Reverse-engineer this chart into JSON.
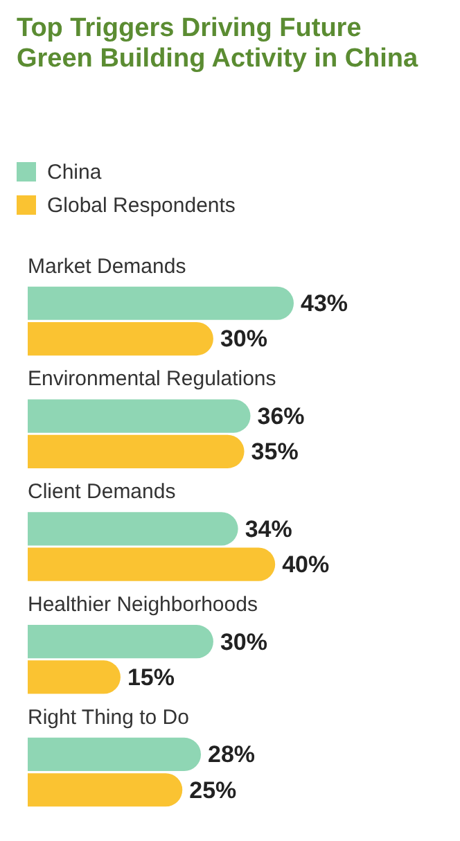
{
  "chart_data": {
    "type": "bar",
    "orientation": "horizontal",
    "title": "Top Triggers Driving Future Green Building Activity in China",
    "categories": [
      "Market Demands",
      "Environmental Regulations",
      "Client Demands",
      "Healthier Neighborhoods",
      "Right Thing to Do"
    ],
    "series": [
      {
        "name": "China",
        "color": "#8fd6b4",
        "values": [
          43,
          36,
          34,
          30,
          28
        ],
        "value_labels": [
          "43%",
          "36%",
          "34%",
          "30%",
          "28%"
        ]
      },
      {
        "name": "Global Respondents",
        "color": "#fac332",
        "values": [
          30,
          35,
          40,
          15,
          25
        ],
        "value_labels": [
          "30%",
          "35%",
          "40%",
          "15%",
          "25%"
        ]
      }
    ],
    "legend": "top left"
  }
}
